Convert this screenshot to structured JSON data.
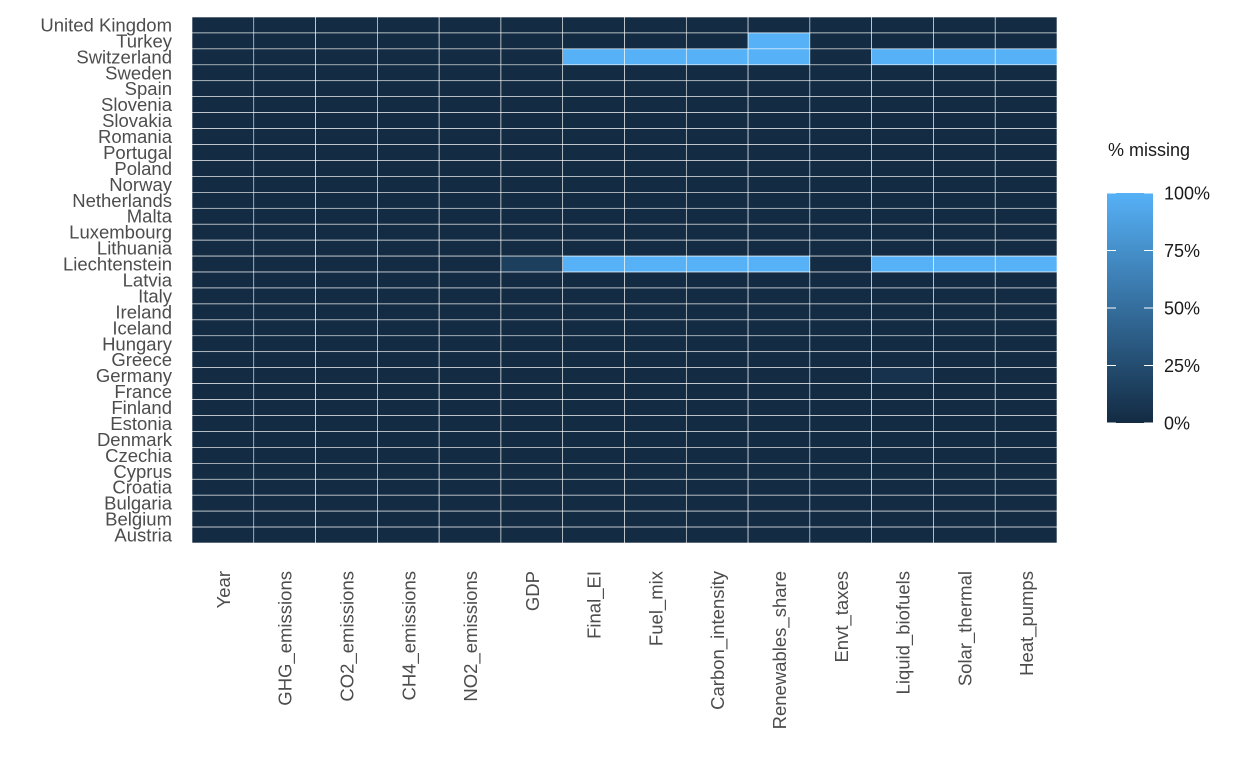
{
  "chart_data": {
    "type": "heatmap",
    "title": "",
    "xlabel": "",
    "ylabel": "",
    "x_categories": [
      "Year",
      "GHG_emissions",
      "CO2_emissions",
      "CH4_emissions",
      "NO2_emissions",
      "GDP",
      "Final_EI",
      "Fuel_mix",
      "Carbon_intensity",
      "Renewables_share",
      "Envt_taxes",
      "Liquid_biofuels",
      "Solar_thermal",
      "Heat_pumps"
    ],
    "y_categories": [
      "United Kingdom",
      "Turkey",
      "Switzerland",
      "Sweden",
      "Spain",
      "Slovenia",
      "Slovakia",
      "Romania",
      "Portugal",
      "Poland",
      "Norway",
      "Netherlands",
      "Malta",
      "Luxembourg",
      "Lithuania",
      "Liechtenstein",
      "Latvia",
      "Italy",
      "Ireland",
      "Iceland",
      "Hungary",
      "Greece",
      "Germany",
      "France",
      "Finland",
      "Estonia",
      "Denmark",
      "Czechia",
      "Cyprus",
      "Croatia",
      "Bulgaria",
      "Belgium",
      "Austria"
    ],
    "values": [
      [
        0,
        0,
        0,
        0,
        0,
        0,
        0,
        0,
        0,
        0,
        0,
        0,
        0,
        0
      ],
      [
        0,
        0,
        0,
        0,
        0,
        0,
        0,
        0,
        0,
        100,
        0,
        0,
        0,
        0
      ],
      [
        0,
        0,
        0,
        0,
        0,
        0,
        100,
        100,
        100,
        100,
        0,
        100,
        100,
        100
      ],
      [
        0,
        0,
        0,
        0,
        0,
        0,
        0,
        0,
        0,
        0,
        0,
        0,
        0,
        0
      ],
      [
        0,
        0,
        0,
        0,
        0,
        0,
        0,
        0,
        0,
        0,
        0,
        0,
        0,
        0
      ],
      [
        0,
        0,
        0,
        0,
        0,
        0,
        0,
        0,
        0,
        0,
        0,
        0,
        0,
        0
      ],
      [
        0,
        0,
        0,
        0,
        0,
        0,
        0,
        0,
        0,
        0,
        0,
        0,
        0,
        0
      ],
      [
        0,
        0,
        0,
        0,
        0,
        0,
        0,
        0,
        0,
        0,
        0,
        0,
        0,
        0
      ],
      [
        0,
        0,
        0,
        0,
        0,
        0,
        0,
        0,
        0,
        0,
        0,
        0,
        0,
        0
      ],
      [
        0,
        0,
        0,
        0,
        0,
        0,
        0,
        0,
        0,
        0,
        0,
        0,
        0,
        0
      ],
      [
        0,
        0,
        0,
        0,
        0,
        0,
        0,
        0,
        0,
        0,
        0,
        0,
        0,
        0
      ],
      [
        0,
        0,
        0,
        0,
        0,
        0,
        0,
        0,
        0,
        0,
        0,
        0,
        0,
        0
      ],
      [
        0,
        0,
        0,
        0,
        0,
        0,
        0,
        0,
        0,
        0,
        0,
        0,
        0,
        0
      ],
      [
        0,
        0,
        0,
        0,
        0,
        0,
        0,
        0,
        0,
        0,
        0,
        0,
        0,
        0
      ],
      [
        0,
        0,
        0,
        0,
        0,
        0,
        0,
        0,
        0,
        0,
        0,
        0,
        0,
        0
      ],
      [
        0,
        0,
        0,
        0,
        0,
        15,
        100,
        100,
        100,
        100,
        0,
        100,
        100,
        100
      ],
      [
        0,
        0,
        0,
        0,
        0,
        0,
        0,
        0,
        0,
        0,
        0,
        0,
        0,
        0
      ],
      [
        0,
        0,
        0,
        0,
        0,
        0,
        0,
        0,
        0,
        0,
        0,
        0,
        0,
        0
      ],
      [
        0,
        0,
        0,
        0,
        0,
        0,
        0,
        0,
        0,
        0,
        0,
        0,
        0,
        0
      ],
      [
        0,
        0,
        0,
        0,
        0,
        0,
        0,
        0,
        0,
        0,
        0,
        0,
        0,
        0
      ],
      [
        0,
        0,
        0,
        0,
        0,
        0,
        0,
        0,
        0,
        0,
        0,
        0,
        0,
        0
      ],
      [
        0,
        0,
        0,
        0,
        0,
        0,
        0,
        0,
        0,
        0,
        0,
        0,
        0,
        0
      ],
      [
        0,
        0,
        0,
        0,
        0,
        0,
        0,
        0,
        0,
        0,
        0,
        5,
        0,
        0
      ],
      [
        0,
        0,
        0,
        0,
        0,
        0,
        0,
        0,
        0,
        0,
        0,
        0,
        0,
        0
      ],
      [
        0,
        0,
        0,
        0,
        0,
        0,
        0,
        0,
        0,
        0,
        0,
        0,
        0,
        0
      ],
      [
        0,
        0,
        0,
        0,
        0,
        0,
        0,
        0,
        0,
        0,
        0,
        0,
        0,
        0
      ],
      [
        0,
        0,
        0,
        0,
        0,
        0,
        0,
        0,
        0,
        0,
        0,
        0,
        0,
        0
      ],
      [
        0,
        0,
        0,
        0,
        0,
        0,
        0,
        0,
        0,
        0,
        0,
        0,
        0,
        0
      ],
      [
        0,
        0,
        0,
        0,
        0,
        0,
        0,
        0,
        0,
        0,
        0,
        0,
        0,
        0
      ],
      [
        0,
        0,
        0,
        0,
        0,
        0,
        0,
        0,
        0,
        0,
        0,
        0,
        0,
        0
      ],
      [
        0,
        0,
        0,
        0,
        0,
        0,
        0,
        0,
        0,
        0,
        0,
        0,
        0,
        0
      ],
      [
        0,
        0,
        0,
        0,
        0,
        0,
        0,
        0,
        0,
        0,
        0,
        0,
        0,
        0
      ],
      [
        0,
        0,
        0,
        0,
        0,
        0,
        0,
        0,
        0,
        0,
        0,
        0,
        0,
        0
      ]
    ],
    "value_range": [
      0,
      100
    ],
    "legend": {
      "title": "% missing",
      "placement": "right",
      "breaks": [
        "100%",
        "75%",
        "50%",
        "25%",
        "0%"
      ],
      "break_values": [
        100,
        75,
        50,
        25,
        0
      ]
    },
    "colors": {
      "low": "#132b43",
      "high": "#56b1f7",
      "grid": "#ffffff",
      "text": "#4d4d4d"
    }
  }
}
